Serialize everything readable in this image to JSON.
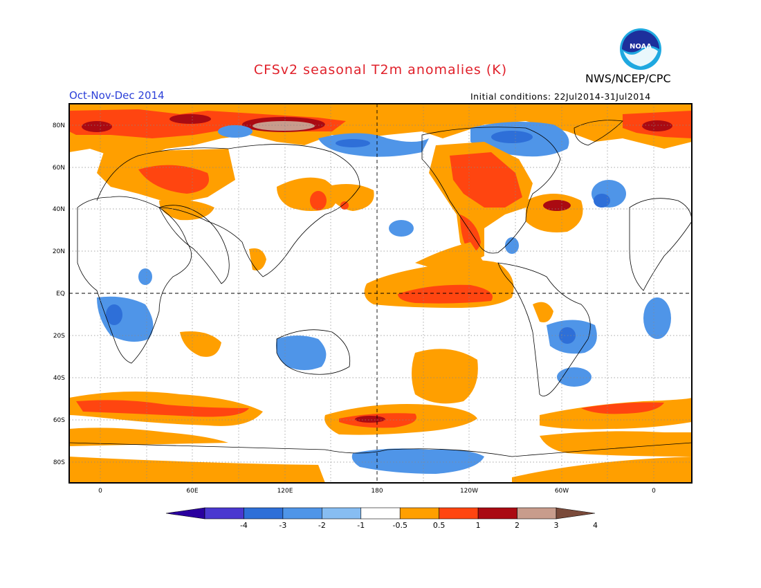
{
  "header": {
    "title": "CFSv2 seasonal T2m anomalies (K)",
    "period": "Oct-Nov-Dec 2014",
    "agency": "NWS/NCEP/CPC",
    "initial_conditions": "Initial conditions: 22Jul2014-31Jul2014",
    "logo_text": "NOAA"
  },
  "map": {
    "lat_labels": [
      "80N",
      "60N",
      "40N",
      "20N",
      "EQ",
      "20S",
      "40S",
      "60S",
      "80S"
    ],
    "lon_labels": [
      "0",
      "60E",
      "120E",
      "180",
      "120W",
      "60W",
      "0"
    ]
  },
  "colorbar": {
    "labels": [
      "-4",
      "-3",
      "-2",
      "-1",
      "-0.5",
      "0.5",
      "1",
      "2",
      "3",
      "4"
    ],
    "colors": [
      "#2a009f",
      "#4a38d0",
      "#2e6fd8",
      "#4f95e8",
      "#87bdf2",
      "#ffffff",
      "#ff9f00",
      "#ff4510",
      "#aa0a12",
      "#c89c8c",
      "#7a4a3a"
    ]
  },
  "colors": {
    "title": "#e0202a",
    "period": "#2b3fd8"
  }
}
